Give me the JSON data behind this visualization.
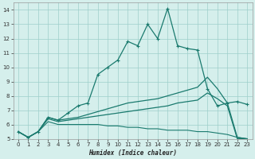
{
  "xlabel": "Humidex (Indice chaleur)",
  "bg_color": "#d5efec",
  "grid_color": "#9ecfca",
  "line_color": "#1a7a6e",
  "xlim": [
    -0.5,
    23.5
  ],
  "ylim": [
    5.0,
    14.5
  ],
  "xticks": [
    0,
    1,
    2,
    3,
    4,
    5,
    6,
    7,
    8,
    9,
    10,
    11,
    12,
    13,
    14,
    15,
    16,
    17,
    18,
    19,
    20,
    21,
    22,
    23
  ],
  "yticks": [
    5,
    6,
    7,
    8,
    9,
    10,
    11,
    12,
    13,
    14
  ],
  "curve1_x": [
    0,
    1,
    2,
    3,
    4,
    5,
    6,
    7,
    8,
    9,
    10,
    11,
    12,
    13,
    14,
    15,
    16,
    17,
    18,
    19,
    20,
    21,
    22,
    23
  ],
  "curve1_y": [
    5.5,
    5.1,
    5.5,
    6.5,
    6.3,
    6.8,
    7.3,
    7.5,
    9.5,
    10.0,
    10.5,
    11.8,
    11.5,
    13.0,
    12.0,
    14.1,
    11.5,
    11.3,
    11.2,
    8.5,
    7.3,
    7.5,
    7.6,
    7.4
  ],
  "curve2_x": [
    0,
    1,
    2,
    3,
    4,
    5,
    6,
    7,
    8,
    9,
    10,
    11,
    12,
    13,
    14,
    15,
    16,
    17,
    18,
    19,
    20,
    21,
    22,
    23
  ],
  "curve2_y": [
    5.5,
    5.1,
    5.5,
    6.5,
    6.3,
    6.4,
    6.5,
    6.7,
    6.9,
    7.1,
    7.3,
    7.5,
    7.6,
    7.7,
    7.8,
    8.0,
    8.2,
    8.4,
    8.6,
    9.3,
    8.5,
    7.5,
    5.1,
    5.0
  ],
  "curve3_x": [
    0,
    1,
    2,
    3,
    4,
    5,
    6,
    7,
    8,
    9,
    10,
    11,
    12,
    13,
    14,
    15,
    16,
    17,
    18,
    19,
    20,
    21,
    22,
    23
  ],
  "curve3_y": [
    5.5,
    5.1,
    5.5,
    6.4,
    6.2,
    6.3,
    6.4,
    6.5,
    6.6,
    6.7,
    6.8,
    6.9,
    7.0,
    7.1,
    7.2,
    7.3,
    7.5,
    7.6,
    7.7,
    8.2,
    7.8,
    7.3,
    5.0,
    5.0
  ],
  "curve4_x": [
    0,
    1,
    2,
    3,
    4,
    5,
    6,
    7,
    8,
    9,
    10,
    11,
    12,
    13,
    14,
    15,
    16,
    17,
    18,
    19,
    20,
    21,
    22,
    23
  ],
  "curve4_y": [
    5.5,
    5.1,
    5.5,
    6.2,
    6.0,
    6.0,
    6.0,
    6.0,
    6.0,
    5.9,
    5.9,
    5.8,
    5.8,
    5.7,
    5.7,
    5.6,
    5.6,
    5.6,
    5.5,
    5.5,
    5.4,
    5.3,
    5.1,
    5.0
  ]
}
